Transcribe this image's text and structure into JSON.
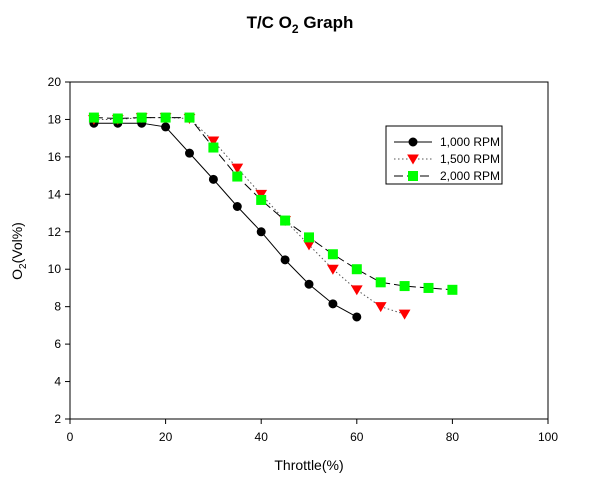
{
  "chart_data": {
    "type": "line",
    "title": "T/C O",
    "title_sub": "2",
    "title_suffix": " Graph",
    "xlabel": "Throttle(%)",
    "ylabel_main": "O",
    "ylabel_sub": "2",
    "ylabel_suffix": "(Vol%)",
    "xlim": [
      0,
      100
    ],
    "ylim": [
      2,
      20
    ],
    "xticks": [
      0,
      20,
      40,
      60,
      80,
      100
    ],
    "yticks": [
      2,
      4,
      6,
      8,
      10,
      12,
      14,
      16,
      18,
      20
    ],
    "grid": false,
    "legend_position": "right",
    "series": [
      {
        "name": "1,000 RPM",
        "color": "#000000",
        "marker": "circle",
        "line": "solid",
        "x": [
          5,
          10,
          15,
          20,
          25,
          30,
          35,
          40,
          45,
          50,
          55,
          60
        ],
        "y": [
          17.8,
          17.8,
          17.8,
          17.6,
          16.2,
          14.8,
          13.35,
          12.0,
          10.5,
          9.2,
          8.15,
          7.45
        ]
      },
      {
        "name": "1,500 RPM",
        "color": "#ff0000",
        "marker": "triangle-down",
        "line": "dotted",
        "x": [
          5,
          10,
          15,
          20,
          25,
          30,
          35,
          40,
          45,
          50,
          55,
          60,
          65,
          70
        ],
        "y": [
          18.0,
          18.0,
          18.1,
          18.1,
          18.05,
          16.85,
          15.4,
          14.0,
          12.6,
          11.3,
          10.0,
          8.9,
          8.0,
          7.6
        ]
      },
      {
        "name": "2,000 RPM",
        "color": "#00ff00",
        "marker": "square",
        "line": "dashed",
        "x": [
          5,
          10,
          15,
          20,
          25,
          30,
          35,
          40,
          45,
          50,
          55,
          60,
          65,
          70,
          75,
          80
        ],
        "y": [
          18.1,
          18.05,
          18.1,
          18.1,
          18.1,
          16.5,
          14.95,
          13.7,
          12.6,
          11.7,
          10.8,
          10.0,
          9.3,
          9.1,
          9.0,
          8.9
        ]
      }
    ]
  }
}
